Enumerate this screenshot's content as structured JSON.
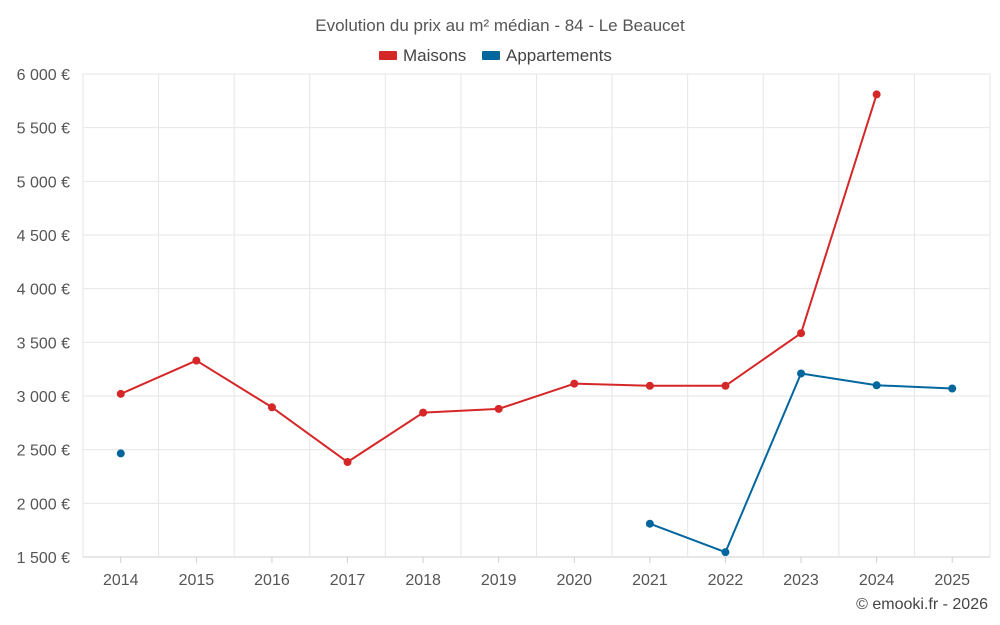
{
  "chart_data": {
    "type": "line",
    "title": "Evolution du prix au m² médian - 84 - Le Beaucet",
    "x": [
      "2014",
      "2015",
      "2016",
      "2017",
      "2018",
      "2019",
      "2020",
      "2021",
      "2022",
      "2023",
      "2024",
      "2025"
    ],
    "ylim": [
      1500,
      6000
    ],
    "yticks": [
      1500,
      2000,
      2500,
      3000,
      3500,
      4000,
      4500,
      5000,
      5500,
      6000
    ],
    "ytick_labels": [
      "1 500 €",
      "2 000 €",
      "2 500 €",
      "3 000 €",
      "3 500 €",
      "4 000 €",
      "4 500 €",
      "5 000 €",
      "5 500 €",
      "6 000 €"
    ],
    "legend_position": "top-center",
    "grid": true,
    "series": [
      {
        "name": "Maisons",
        "color": "#d62728",
        "values": [
          3020,
          3330,
          2895,
          2385,
          2845,
          2880,
          3115,
          3095,
          3095,
          3585,
          5810,
          null
        ]
      },
      {
        "name": "Appartements",
        "color": "#03679e",
        "values": [
          2465,
          null,
          null,
          null,
          null,
          null,
          null,
          1810,
          1545,
          3210,
          3100,
          3070
        ]
      }
    ]
  },
  "credit": "© emooki.fr - 2026"
}
